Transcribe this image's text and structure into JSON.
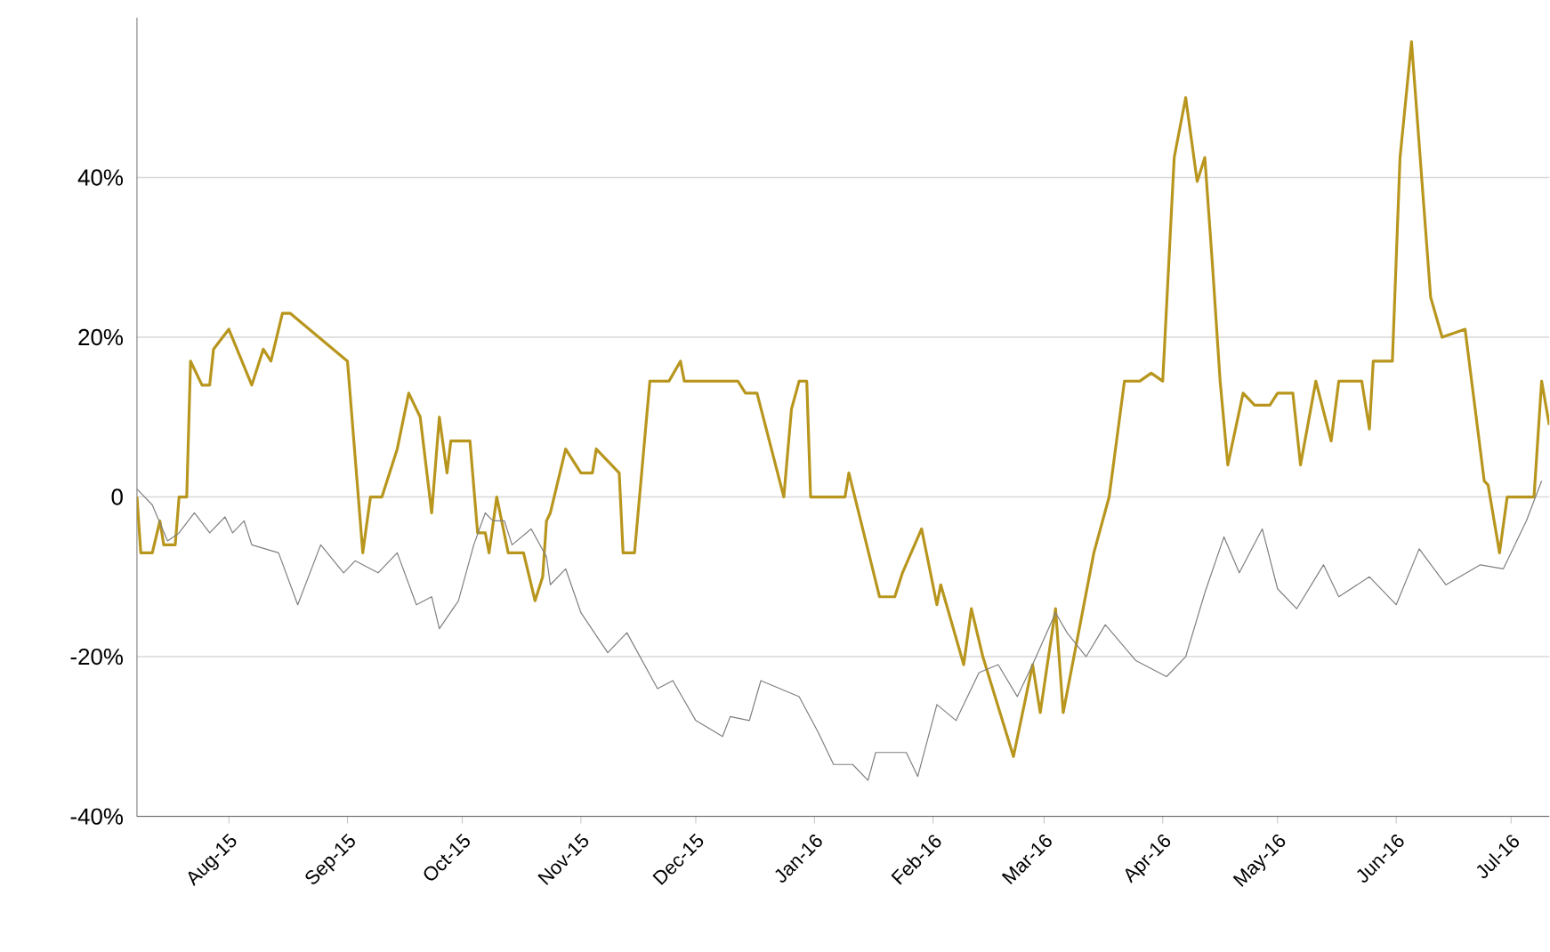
{
  "chart_data": {
    "type": "line",
    "xlim": [
      "2015-07-08",
      "2016-07-11"
    ],
    "ylim": [
      -40,
      60
    ],
    "xticks": [
      {
        "value": "2015-08-01",
        "label": "Aug-15"
      },
      {
        "value": "2015-09-01",
        "label": "Sep-15"
      },
      {
        "value": "2015-10-01",
        "label": "Oct-15"
      },
      {
        "value": "2015-11-01",
        "label": "Nov-15"
      },
      {
        "value": "2015-12-01",
        "label": "Dec-15"
      },
      {
        "value": "2016-01-01",
        "label": "Jan-16"
      },
      {
        "value": "2016-02-01",
        "label": "Feb-16"
      },
      {
        "value": "2016-03-01",
        "label": "Mar-16"
      },
      {
        "value": "2016-04-01",
        "label": "Apr-16"
      },
      {
        "value": "2016-05-01",
        "label": "May-16"
      },
      {
        "value": "2016-06-01",
        "label": "Jun-16"
      },
      {
        "value": "2016-07-01",
        "label": "Jul-16"
      }
    ],
    "yticks": [
      {
        "value": -40,
        "label": "-40%"
      },
      {
        "value": -20,
        "label": "-20%"
      },
      0,
      {
        "value": 20,
        "label": "20%"
      },
      {
        "value": 40,
        "label": "40%"
      }
    ],
    "grid": "y",
    "legend": false,
    "marker": "none",
    "line_style": "solid",
    "series": [
      {
        "color": "#b8961e",
        "x": [
          "2015-07-08",
          "2015-07-09",
          "2015-07-12",
          "2015-07-14",
          "2015-07-15",
          "2015-07-18",
          "2015-07-19",
          "2015-07-21",
          "2015-07-22",
          "2015-07-25",
          "2015-07-27",
          "2015-07-28",
          "2015-08-01",
          "2015-08-07",
          "2015-08-10",
          "2015-08-12",
          "2015-08-15",
          "2015-08-17",
          "2015-09-01",
          "2015-09-05",
          "2015-09-07",
          "2015-09-10",
          "2015-09-14",
          "2015-09-17",
          "2015-09-20",
          "2015-09-23",
          "2015-09-25",
          "2015-09-27",
          "2015-09-28",
          "2015-10-03",
          "2015-10-05",
          "2015-10-07",
          "2015-10-08",
          "2015-10-10",
          "2015-10-13",
          "2015-10-17",
          "2015-10-20",
          "2015-10-22",
          "2015-10-23",
          "2015-10-24",
          "2015-10-28",
          "2015-11-01",
          "2015-11-04",
          "2015-11-05",
          "2015-11-11",
          "2015-11-12",
          "2015-11-15",
          "2015-11-19",
          "2015-11-24",
          "2015-11-27",
          "2015-11-28",
          "2015-12-12",
          "2015-12-14",
          "2015-12-17",
          "2015-12-24",
          "2015-12-26",
          "2015-12-28",
          "2015-12-30",
          "2015-12-31",
          "2016-01-09",
          "2016-01-10",
          "2016-01-18",
          "2016-01-22",
          "2016-01-24",
          "2016-01-29",
          "2016-02-02",
          "2016-02-03",
          "2016-02-09",
          "2016-02-11",
          "2016-02-14",
          "2016-02-22",
          "2016-02-27",
          "2016-02-29",
          "2016-03-04",
          "2016-03-06",
          "2016-03-14",
          "2016-03-18",
          "2016-03-22",
          "2016-03-26",
          "2016-03-29",
          "2016-04-01",
          "2016-04-04",
          "2016-04-07",
          "2016-04-10",
          "2016-04-12",
          "2016-04-14",
          "2016-04-16",
          "2016-04-18",
          "2016-04-22",
          "2016-04-25",
          "2016-04-29",
          "2016-05-01",
          "2016-05-05",
          "2016-05-07",
          "2016-05-11",
          "2016-05-15",
          "2016-05-17",
          "2016-05-23",
          "2016-05-25",
          "2016-05-26",
          "2016-05-31",
          "2016-06-02",
          "2016-06-05",
          "2016-06-10",
          "2016-06-13",
          "2016-06-19",
          "2016-06-24",
          "2016-06-25",
          "2016-06-28",
          "2016-06-30",
          "2016-07-03",
          "2016-07-07",
          "2016-07-09",
          "2016-07-11"
        ],
        "values": [
          0,
          -7,
          -7,
          -3,
          -6,
          -6,
          0,
          0,
          17,
          14,
          14,
          18.5,
          21,
          14,
          18.5,
          17,
          23,
          23,
          17,
          -7,
          0,
          0,
          6,
          13,
          10,
          -2,
          10,
          3,
          7,
          7,
          -4.5,
          -4.5,
          -7,
          0,
          -7,
          -7,
          -13,
          -10,
          -3,
          -2,
          6,
          3,
          3,
          6,
          3,
          -7,
          -7,
          14.5,
          14.5,
          17,
          14.5,
          14.5,
          13,
          13,
          0,
          11,
          14.5,
          14.5,
          0,
          0,
          3,
          -12.5,
          -12.5,
          -9.5,
          -4,
          -13.5,
          -11,
          -21,
          -14,
          -20,
          -32.5,
          -21,
          -27,
          -14,
          -27,
          -7,
          0,
          14.5,
          14.5,
          15.5,
          14.5,
          42.5,
          50,
          39.5,
          42.5,
          29,
          14.5,
          4,
          13,
          11.5,
          11.5,
          13,
          13,
          4,
          14.5,
          7,
          14.5,
          14.5,
          8.5,
          17,
          17,
          42.5,
          57,
          25,
          20,
          21,
          2,
          1.5,
          -7,
          0,
          0,
          0,
          14.5,
          9
        ]
      },
      {
        "color": "#7f7f7f",
        "x": [
          "2015-07-08",
          "2015-07-12",
          "2015-07-16",
          "2015-07-19",
          "2015-07-23",
          "2015-07-27",
          "2015-07-31",
          "2015-08-02",
          "2015-08-05",
          "2015-08-07",
          "2015-08-14",
          "2015-08-19",
          "2015-08-25",
          "2015-08-31",
          "2015-09-03",
          "2015-09-09",
          "2015-09-14",
          "2015-09-19",
          "2015-09-23",
          "2015-09-25",
          "2015-09-30",
          "2015-10-04",
          "2015-10-07",
          "2015-10-09",
          "2015-10-12",
          "2015-10-14",
          "2015-10-19",
          "2015-10-23",
          "2015-10-24",
          "2015-10-28",
          "2015-11-01",
          "2015-11-08",
          "2015-11-13",
          "2015-11-21",
          "2015-11-25",
          "2015-12-01",
          "2015-12-08",
          "2015-12-10",
          "2015-12-15",
          "2015-12-18",
          "2015-12-28",
          "2016-01-02",
          "2016-01-06",
          "2016-01-11",
          "2016-01-15",
          "2016-01-17",
          "2016-01-25",
          "2016-01-28",
          "2016-02-02",
          "2016-02-07",
          "2016-02-13",
          "2016-02-18",
          "2016-02-23",
          "2016-02-27",
          "2016-03-04",
          "2016-03-07",
          "2016-03-12",
          "2016-03-17",
          "2016-03-25",
          "2016-04-02",
          "2016-04-07",
          "2016-04-12",
          "2016-04-17",
          "2016-04-21",
          "2016-04-27",
          "2016-05-01",
          "2016-05-06",
          "2016-05-13",
          "2016-05-17",
          "2016-05-25",
          "2016-06-01",
          "2016-06-07",
          "2016-06-14",
          "2016-06-23",
          "2016-06-29",
          "2016-07-05",
          "2016-07-09"
        ],
        "values": [
          1,
          -1,
          -5.5,
          -4.5,
          -2,
          -4.5,
          -2.5,
          -4.5,
          -3,
          -6,
          -7,
          -13.5,
          -6,
          -9.5,
          -8,
          -9.5,
          -7,
          -13.5,
          -12.5,
          -16.5,
          -13,
          -6,
          -2,
          -3,
          -3,
          -6,
          -4,
          -7.5,
          -11,
          -9,
          -14.5,
          -19.5,
          -17,
          -24,
          -23,
          -28,
          -30,
          -27.5,
          -28,
          -23,
          -25,
          -29.5,
          -33.5,
          -33.5,
          -35.5,
          -32,
          -32,
          -35,
          -26,
          -28,
          -22,
          -21,
          -25,
          -21,
          -14.5,
          -17,
          -20,
          -16,
          -20.5,
          -22.5,
          -20,
          -12,
          -5,
          -9.5,
          -4,
          -11.5,
          -14,
          -8.5,
          -12.5,
          -10,
          -13.5,
          -6.5,
          -11,
          -8.5,
          -9,
          -3,
          2
        ]
      }
    ]
  }
}
